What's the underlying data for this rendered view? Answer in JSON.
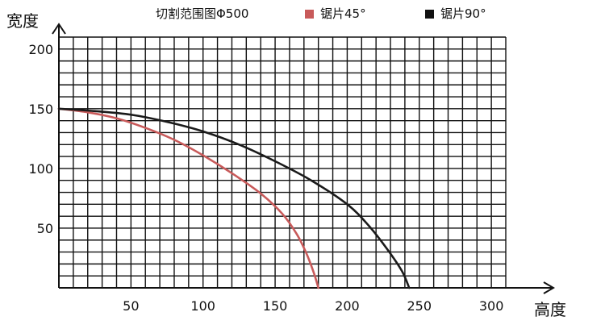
{
  "chart_data": {
    "type": "line",
    "title": "切割范围图Φ500",
    "ylabel": "宽度",
    "xlabel": "高度",
    "xlim": [
      0,
      310
    ],
    "ylim": [
      0,
      210
    ],
    "grid": true,
    "x_ticks": [
      50,
      100,
      150,
      200,
      250,
      300
    ],
    "y_ticks": [
      50,
      100,
      150,
      200
    ],
    "series": [
      {
        "name": "锯片45°",
        "color": "#c85a5a",
        "points": [
          [
            0,
            150
          ],
          [
            20,
            147
          ],
          [
            40,
            142
          ],
          [
            60,
            134
          ],
          [
            80,
            124
          ],
          [
            100,
            111
          ],
          [
            120,
            96
          ],
          [
            140,
            79
          ],
          [
            155,
            62
          ],
          [
            165,
            45
          ],
          [
            172,
            28
          ],
          [
            177,
            12
          ],
          [
            180,
            0
          ]
        ]
      },
      {
        "name": "锯片90°",
        "color": "#1a1a1a",
        "points": [
          [
            0,
            150
          ],
          [
            25,
            148
          ],
          [
            50,
            145
          ],
          [
            75,
            139
          ],
          [
            100,
            131
          ],
          [
            125,
            120
          ],
          [
            150,
            106
          ],
          [
            175,
            90
          ],
          [
            200,
            70
          ],
          [
            215,
            52
          ],
          [
            228,
            32
          ],
          [
            238,
            14
          ],
          [
            243,
            0
          ]
        ]
      }
    ]
  }
}
